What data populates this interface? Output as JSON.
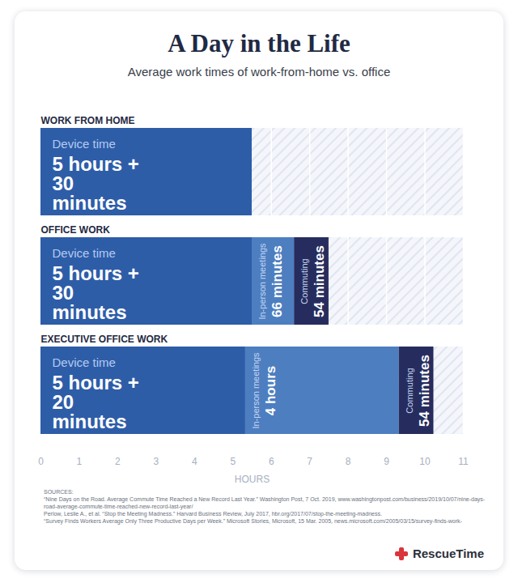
{
  "chart_data": {
    "type": "bar",
    "title": "A Day in the Life",
    "subtitle": "Average work times of work-from-home vs. office",
    "orientation": "horizontal",
    "stacked": true,
    "data_labels": true,
    "grid": true,
    "tick_labels": "x",
    "categories": [
      "WORK FROM HOME",
      "OFFICE WORK",
      "EXECUTIVE OFFICE WORK"
    ],
    "series": [
      {
        "name": "Device time",
        "color": "#2e5da8",
        "values": [
          5.5,
          5.5,
          5.33
        ],
        "value_labels": [
          "5 hours + 30 minutes",
          "5 hours + 30 minutes",
          "5 hours + 20 minutes"
        ]
      },
      {
        "name": "In-person meetings",
        "color": "#4d7ec0",
        "values": [
          null,
          1.1,
          4
        ],
        "value_labels": [
          null,
          "66 minutes",
          "4 hours"
        ]
      },
      {
        "name": "Commuting",
        "color": "#262d5e",
        "values": [
          null,
          0.9,
          0.9
        ],
        "value_labels": [
          null,
          "54 minutes",
          "54 minutes"
        ]
      }
    ],
    "xlim": [
      0,
      11
    ],
    "xticks": [
      0,
      1,
      2,
      3,
      4,
      5,
      6,
      7,
      8,
      9,
      10,
      11
    ],
    "xlabel": "HOURS",
    "sources_label": "SOURCES:",
    "sources": [
      "“Nine Days on the Road. Average Commute Time Reached a New Record Last Year.” Washington Post, 7 Oct. 2019, www.washingtonpost.com/business/2019/10/07/nine-days-road-average-commute-time-reached-new-record-last-year/",
      "Perlow, Leslie A., et al. “Stop the Meeting Madness.” Harvard Business Review, July 2017, hbr.org/2017/07/stop-the-meeting-madness.",
      "“Survey Finds Workers Average Only Three Productive Days per Week.” Microsoft Stories, Microsoft, 15 Mar. 2005, news.microsoft.com/2005/03/15/survey-finds-work-"
    ],
    "brand": "RescueTime"
  }
}
